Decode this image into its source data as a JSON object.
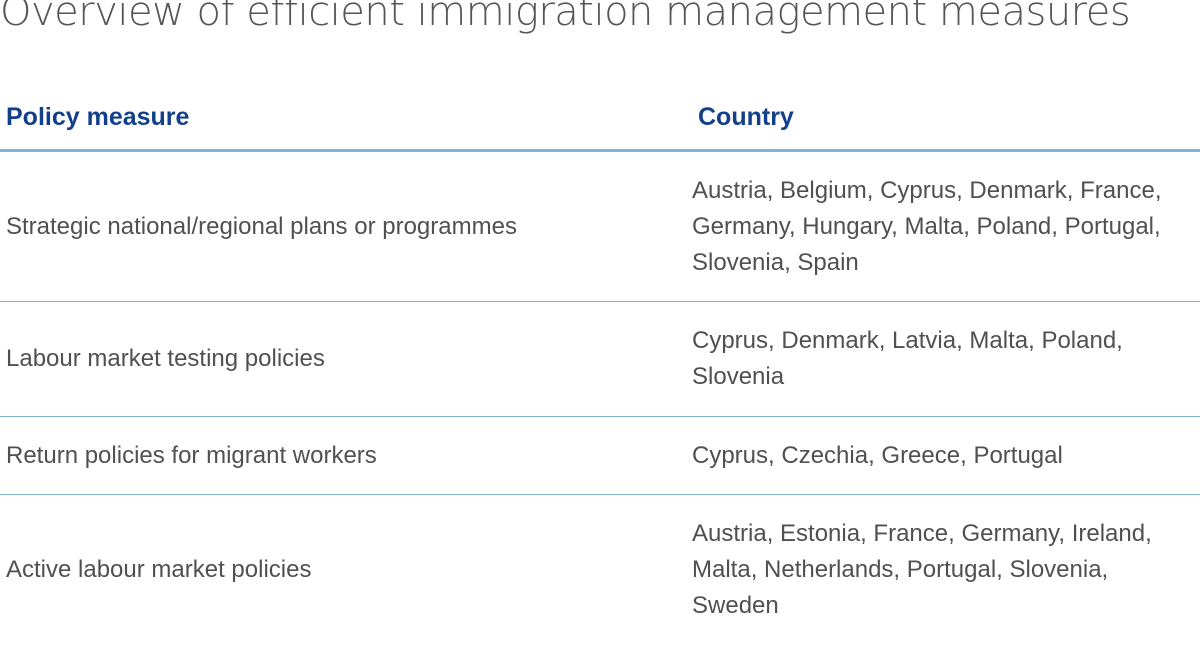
{
  "title": "Overview of efficient immigration management measures",
  "table": {
    "headers": {
      "measure": "Policy measure",
      "country": "Country"
    },
    "rows": [
      {
        "measure": "Strategic national/regional plans or programmes",
        "country": "Austria, Belgium, Cyprus, Denmark, France, Germany, Hungary, Malta, Poland, Portugal, Slovenia, Spain"
      },
      {
        "measure": "Labour market testing policies",
        "country": "Cyprus, Denmark, Latvia, Malta, Poland, Slovenia"
      },
      {
        "measure": "Return policies for migrant workers",
        "country": "Cyprus, Czechia, Greece, Portugal"
      },
      {
        "measure": "Active labour market policies",
        "country": "Austria, Estonia, France, Germany, Ireland, Malta, Netherlands, Portugal, Slovenia, Sweden"
      }
    ]
  },
  "colors": {
    "header_text": "#123f8a",
    "rule": "#7fb4d2",
    "body_text": "#505050"
  }
}
